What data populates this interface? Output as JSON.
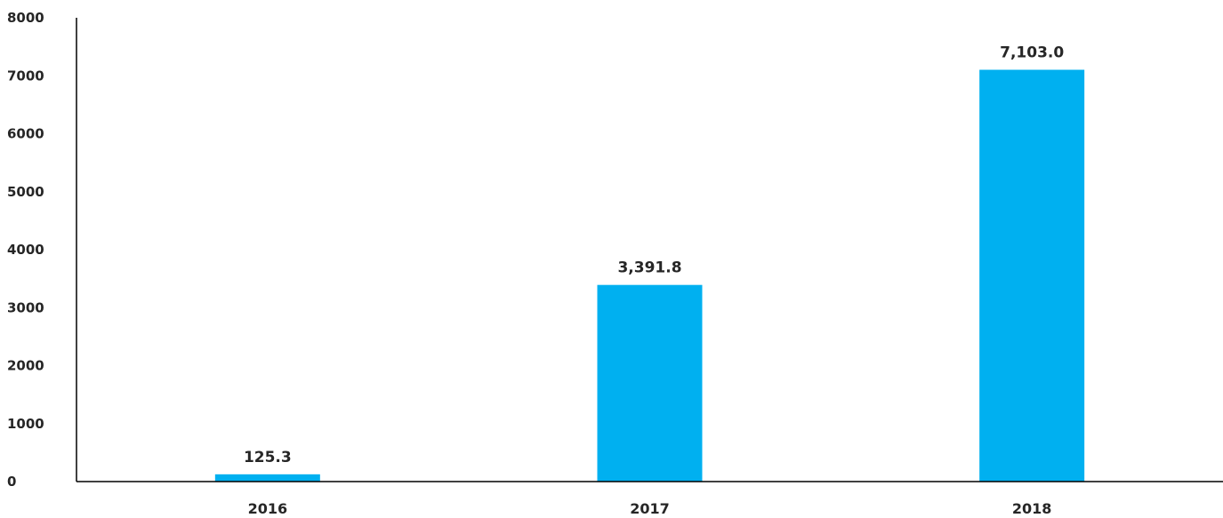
{
  "chart_data": {
    "type": "bar",
    "title": "",
    "xlabel": "",
    "ylabel": "",
    "categories": [
      "2016",
      "2017",
      "2018"
    ],
    "values": [
      125.3,
      3391.8,
      7103.0
    ],
    "data_labels": [
      "125.3",
      "3,391.8",
      "7,103.0"
    ],
    "ylim": [
      0,
      8000
    ],
    "yticks": [
      0,
      1000,
      2000,
      3000,
      4000,
      5000,
      6000,
      7000,
      8000
    ],
    "ytick_labels": [
      "0",
      "1000",
      "2000",
      "3000",
      "4000",
      "5000",
      "6000",
      "7000",
      "8000"
    ],
    "grid": false,
    "bar_color": "#00B0F0"
  }
}
